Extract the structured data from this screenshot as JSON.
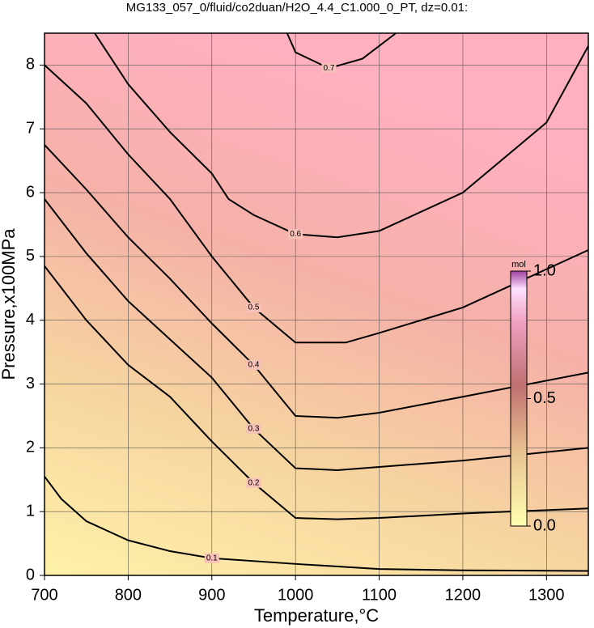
{
  "chart_data": {
    "type": "contour",
    "title": "MG133_057_0/fluid/co2duan/H2O_4.4_C1.000_0_PT, dz=0.01:",
    "x_label": "Temperature,°C",
    "y_label": "Pressure,x100MPa",
    "xlim": [
      700,
      1350
    ],
    "ylim": [
      0,
      8.5
    ],
    "xticks": [
      700,
      800,
      900,
      1000,
      1100,
      1200,
      1300
    ],
    "yticks": [
      0,
      1,
      2,
      3,
      4,
      5,
      6,
      7,
      8
    ],
    "grid": true,
    "color": "#000000",
    "series": [
      {
        "name": "0.1",
        "x": [
          700,
          720,
          750,
          800,
          850,
          900,
          1000,
          1100,
          1200,
          1350
        ],
        "values": [
          1.55,
          1.2,
          0.85,
          0.55,
          0.38,
          0.27,
          0.18,
          0.1,
          0.08,
          0.07
        ]
      },
      {
        "name": "0.2",
        "x": [
          700,
          750,
          800,
          850,
          900,
          950,
          1000,
          1050,
          1100,
          1200,
          1350
        ],
        "values": [
          4.85,
          4.0,
          3.3,
          2.8,
          2.1,
          1.45,
          0.9,
          0.88,
          0.9,
          0.97,
          1.05
        ]
      },
      {
        "name": "0.3",
        "x": [
          700,
          750,
          800,
          850,
          900,
          950,
          1000,
          1050,
          1100,
          1200,
          1350
        ],
        "values": [
          5.9,
          5.05,
          4.3,
          3.7,
          3.1,
          2.3,
          1.68,
          1.65,
          1.7,
          1.8,
          2.0
        ]
      },
      {
        "name": "0.4",
        "x": [
          700,
          750,
          800,
          850,
          900,
          950,
          1000,
          1050,
          1100,
          1200,
          1350
        ],
        "values": [
          6.75,
          6.05,
          5.3,
          4.65,
          3.95,
          3.3,
          2.5,
          2.47,
          2.55,
          2.8,
          3.18
        ]
      },
      {
        "name": "0.5",
        "x": [
          700,
          750,
          800,
          850,
          900,
          950,
          1000,
          1060,
          1100,
          1200,
          1350
        ],
        "values": [
          8.0,
          7.4,
          6.6,
          5.9,
          5.0,
          4.2,
          3.65,
          3.65,
          3.8,
          4.2,
          5.1
        ]
      },
      {
        "name": "0.6",
        "x": [
          760,
          800,
          850,
          900,
          920,
          950,
          1000,
          1050,
          1100,
          1150,
          1200,
          1300,
          1350
        ],
        "values": [
          8.5,
          7.7,
          6.95,
          6.3,
          5.9,
          5.65,
          5.35,
          5.3,
          5.4,
          5.7,
          6.0,
          7.1,
          8.3
        ]
      },
      {
        "name": "0.7",
        "x": [
          990,
          1000,
          1040,
          1080,
          1120
        ],
        "values": [
          8.5,
          8.2,
          7.95,
          8.1,
          8.5
        ]
      }
    ],
    "colorbar": {
      "label": "mol",
      "lim": [
        0,
        1
      ],
      "ticks": [
        {
          "value": 0,
          "label": "0.0"
        },
        {
          "value": 0.5,
          "label": "0.5"
        },
        {
          "value": 1,
          "label": "1.0"
        }
      ]
    }
  }
}
